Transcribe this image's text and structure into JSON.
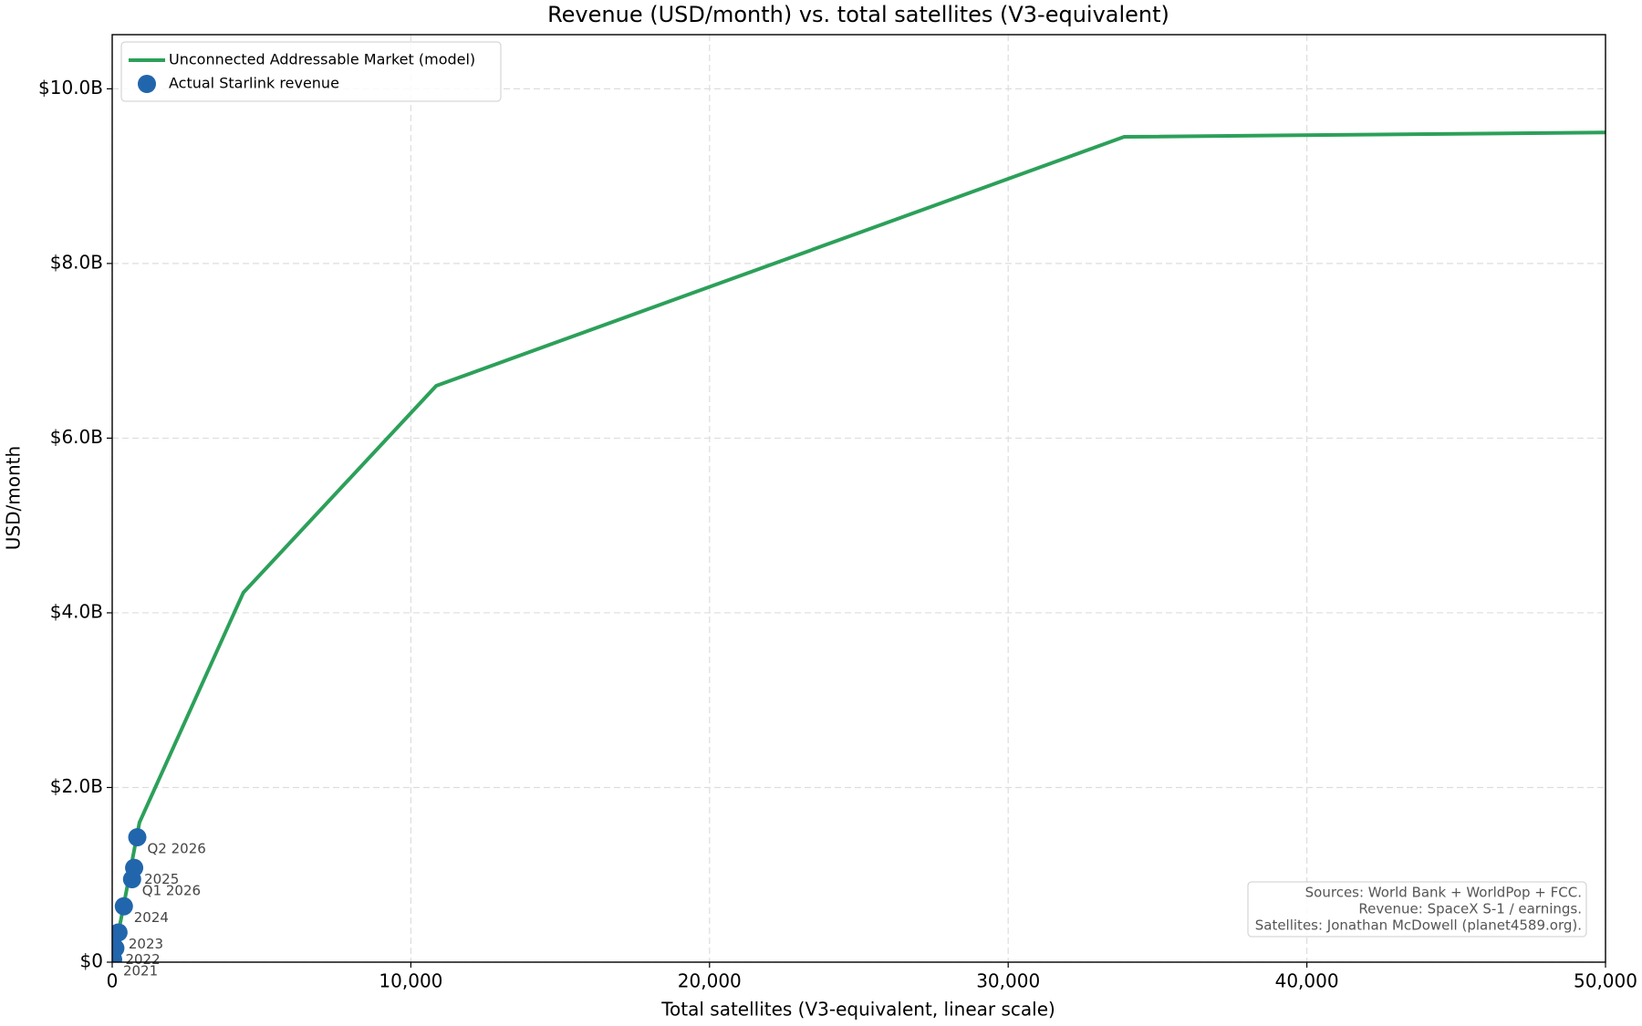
{
  "chart_data": {
    "type": "line-scatter",
    "title": "Revenue (USD/month) vs. total satellites (V3-equivalent)",
    "x_label": "Total satellites (V3-equivalent, linear scale)",
    "y_label": "USD/month",
    "xlim": [
      0,
      50000
    ],
    "ylim": [
      0,
      10620000000
    ],
    "xticks": [
      0,
      {
        "value": 10000,
        "label": "10,000"
      },
      {
        "value": 20000,
        "label": "20,000"
      },
      {
        "value": 30000,
        "label": "30,000"
      },
      {
        "value": 40000,
        "label": "40,000"
      },
      {
        "value": 50000,
        "label": "50,000"
      }
    ],
    "yticks": [
      {
        "value": 0,
        "label": "$0"
      },
      {
        "value": 2000000000,
        "label": "$2.0B"
      },
      {
        "value": 4000000000,
        "label": "$4.0B"
      },
      {
        "value": 6000000000,
        "label": "$6.0B"
      },
      {
        "value": 8000000000,
        "label": "$8.0B"
      },
      {
        "value": 10000000000,
        "label": "$10.0B"
      }
    ],
    "grid": true,
    "legend": "upper left",
    "series": [
      {
        "name": "Unconnected Addressable Market (model)",
        "kind": "line",
        "color": "#2ca05a",
        "x": [
          0,
          300,
          913,
          4389,
          10850,
          33884,
          50000
        ],
        "values": [
          0,
          500000000,
          1600000000,
          4230000000,
          6600000000,
          9450000000,
          9500000000
        ]
      },
      {
        "name": "Actual Starlink revenue",
        "kind": "scatter",
        "color": "#2166ac",
        "labels": [
          "2021",
          "2022",
          "2023",
          "2024",
          "Q1 2026",
          "2025",
          "Q2 2026"
        ],
        "x": [
          30,
          105,
          210,
          390,
          665,
          735,
          840
        ],
        "values": [
          30000000,
          160000000,
          340000000,
          640000000,
          950000000,
          1080000000,
          1430000000
        ]
      }
    ],
    "note": [
      "Sources: World Bank + WorldPop + FCC.",
      "Revenue: SpaceX S-1 / earnings.",
      "Satellites: Jonathan McDowell (planet4589.org)."
    ]
  }
}
